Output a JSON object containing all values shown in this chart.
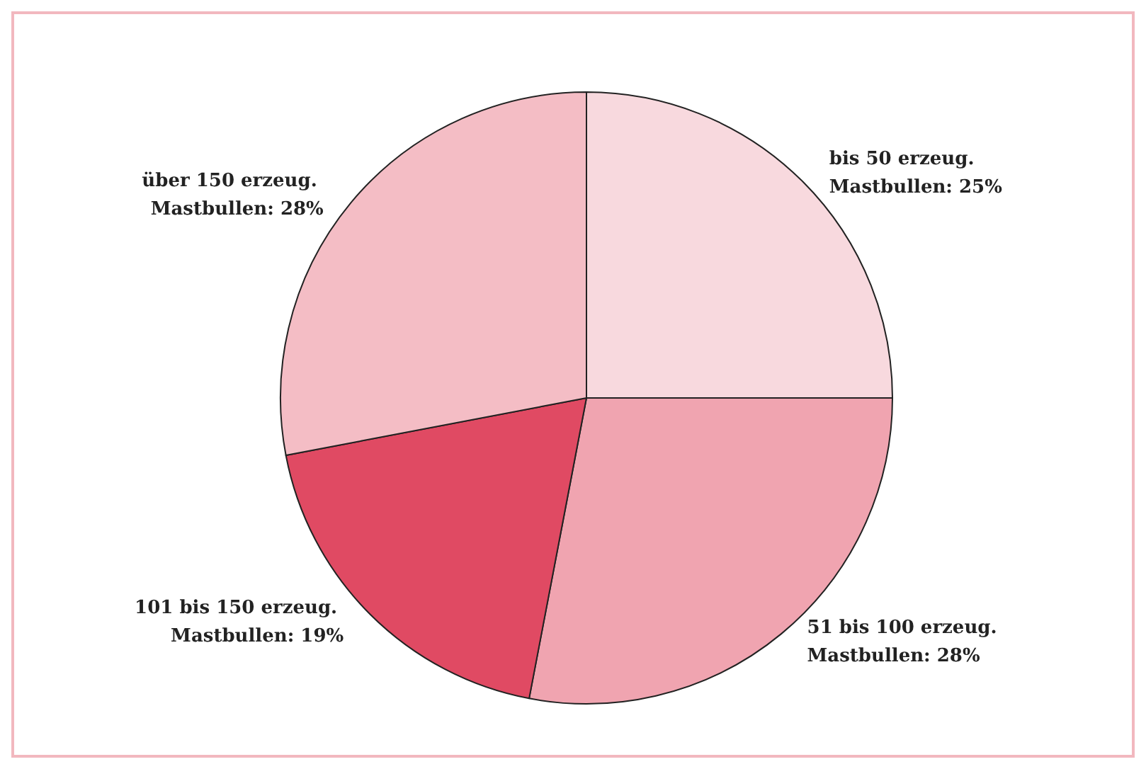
{
  "chart_data": {
    "type": "pie",
    "categories": [
      "bis 50 erzeug. Mastbullen",
      "51 bis 100 erzeug. Mastbullen",
      "101 bis 150 erzeug. Mastbullen",
      "über 150 erzeug. Mastbullen"
    ],
    "value_labels": [
      "25%",
      "28%",
      "19%",
      "28%"
    ],
    "values": [
      25,
      28,
      19,
      28
    ],
    "colors": [
      "#f8d9de",
      "#f0a4b0",
      "#e04a63",
      "#f4bdc5"
    ],
    "legend": false
  }
}
